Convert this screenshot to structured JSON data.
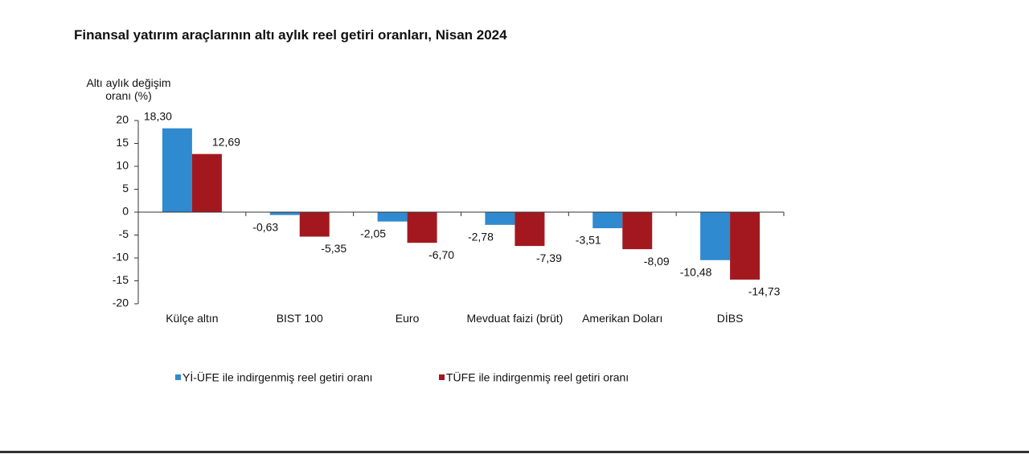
{
  "chart_data": {
    "type": "bar",
    "title": "Finansal yatırım araçlarının altı aylık reel getiri oranları, Nisan 2024",
    "y_label": "Altı aylık değişim oranı (%)",
    "categories": [
      "Külçe altın",
      "BIST 100",
      "Euro",
      "Mevduat faizi (brüt)",
      "Amerikan Doları",
      "DİBS"
    ],
    "series": [
      {
        "name": "Yİ-ÜFE ile indirgenmiş reel getiri oranı",
        "color": "#2f8ad0",
        "values": [
          18.3,
          -0.63,
          -2.05,
          -2.78,
          -3.51,
          -10.48
        ],
        "value_labels": [
          "18,30",
          "-0,63",
          "-2,05",
          "-2,78",
          "-3,51",
          "-10,48"
        ]
      },
      {
        "name": "TÜFE ile indirgenmiş reel getiri oranı",
        "color": "#a3181f",
        "values": [
          12.69,
          -5.35,
          -6.7,
          -7.39,
          -8.09,
          -14.73
        ],
        "value_labels": [
          "12,69",
          "-5,35",
          "-6,70",
          "-7,39",
          "-8,09",
          "-14,73"
        ]
      }
    ],
    "ylim": [
      -20,
      20
    ],
    "yticks": [
      -20,
      -15,
      -10,
      -5,
      0,
      5,
      10,
      15,
      20
    ],
    "grid": false
  }
}
